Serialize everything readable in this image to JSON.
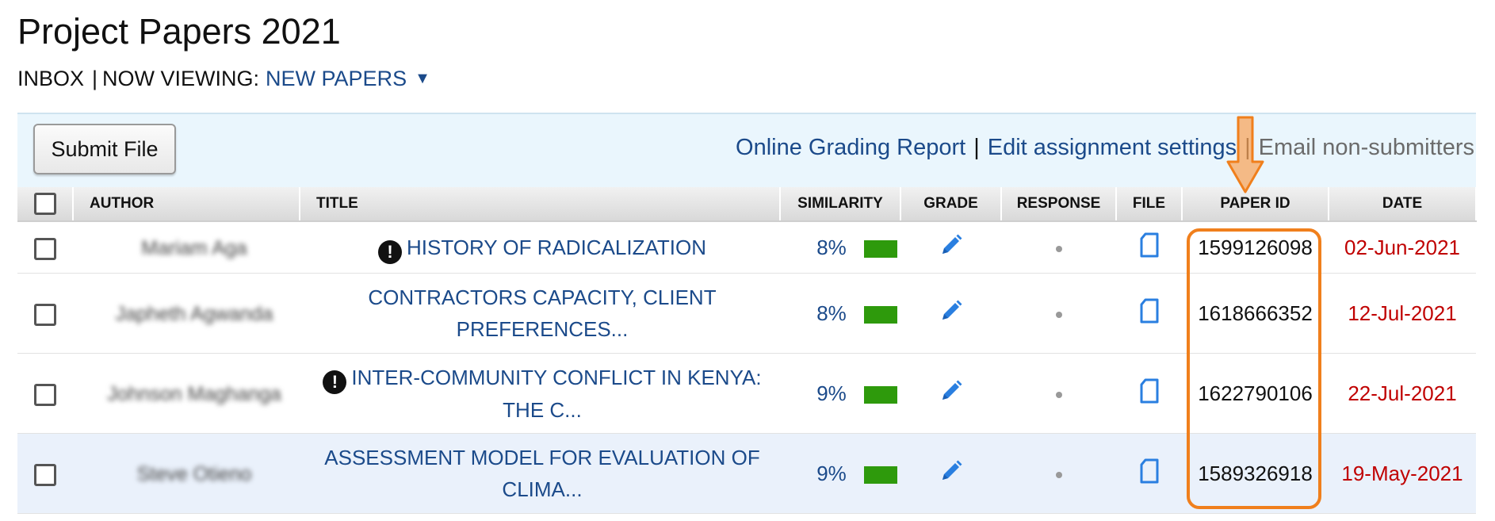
{
  "header": {
    "title": "Project Papers 2021",
    "breadcrumb": {
      "inbox": "INBOX",
      "separator": "|",
      "now_viewing_label": "NOW VIEWING:",
      "view_value": "NEW PAPERS",
      "caret": "▼"
    }
  },
  "toolbar": {
    "submit_label": "Submit File",
    "links": {
      "online_grading": "Online Grading Report",
      "edit_settings": "Edit assignment settings",
      "email_nonsubmitters": "Email non-submitters",
      "sep": "|"
    }
  },
  "table": {
    "columns": {
      "author": "AUTHOR",
      "title": "TITLE",
      "similarity": "SIMILARITY",
      "grade": "GRADE",
      "response": "RESPONSE",
      "file": "FILE",
      "paper_id": "PAPER ID",
      "date": "DATE"
    },
    "rows": [
      {
        "author": "Mariam Aga",
        "title": "HISTORY OF RADICALIZATION",
        "alert": true,
        "similarity": "8%",
        "paper_id": "1599126098",
        "date": "02-Jun-2021"
      },
      {
        "author": "Japheth Agwanda",
        "title": "CONTRACTORS CAPACITY, CLIENT PREFERENCES...",
        "alert": false,
        "similarity": "8%",
        "paper_id": "1618666352",
        "date": "12-Jul-2021"
      },
      {
        "author": "Johnson Maghanga",
        "title": "INTER-COMMUNITY CONFLICT IN KENYA: THE C...",
        "alert": true,
        "similarity": "9%",
        "paper_id": "1622790106",
        "date": "22-Jul-2021"
      },
      {
        "author": "Steve Otieno",
        "title": "ASSESSMENT MODEL FOR EVALUATION OF CLIMA...",
        "alert": false,
        "similarity": "9%",
        "paper_id": "1589326918",
        "date": "19-May-2021"
      }
    ]
  },
  "colors": {
    "link": "#1b4a8a",
    "date": "#c00000",
    "similarity_bar": "#2e9a0c",
    "highlight": "#f07f1c"
  },
  "icons": {
    "alert": "!",
    "grade": "pencil-icon",
    "file": "document-icon"
  }
}
